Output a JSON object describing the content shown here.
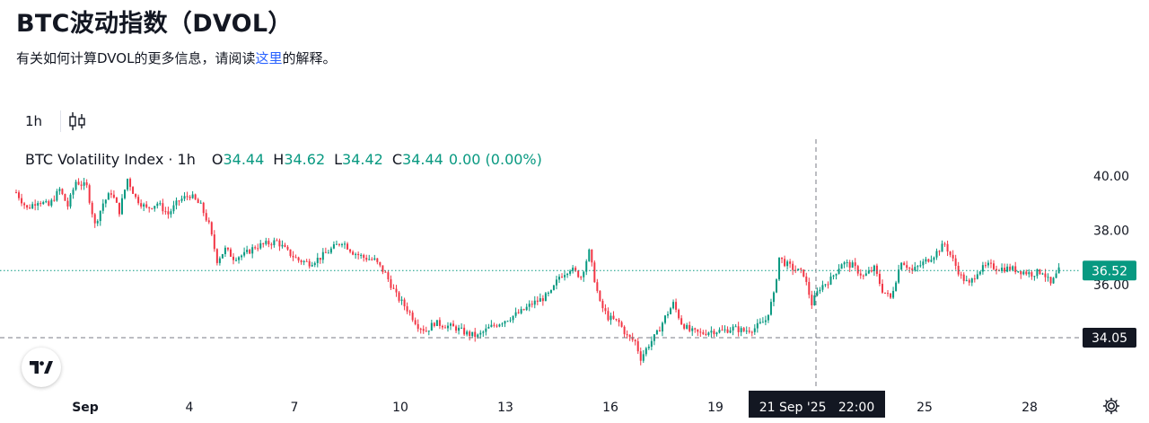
{
  "page": {
    "title": "BTC波动指数（DVOL）",
    "subtitle_pre": "有关如何计算DVOL的更多信息，请阅读",
    "subtitle_link": "这里",
    "subtitle_post": "的解释。"
  },
  "toolbar": {
    "interval_label": "1h",
    "chart_type_icon": "candlestick-icon"
  },
  "legend": {
    "name": "BTC Volatility Index · 1h",
    "o_label": "O",
    "o_value": "34.44",
    "h_label": "H",
    "h_value": "34.62",
    "l_label": "L",
    "l_value": "34.42",
    "c_label": "C",
    "c_value": "34.44",
    "change": "0.00 (0.00%)"
  },
  "colors": {
    "up": "#089981",
    "down": "#f23645",
    "crosshair_label_bg": "#131722",
    "last_price_bg": "#089981"
  },
  "chart_data": {
    "type": "candlestick",
    "y_ticks": [
      "40.00",
      "38.00",
      "36.00"
    ],
    "x_ticks": [
      "Sep",
      "4",
      "7",
      "10",
      "13",
      "16",
      "19",
      "25",
      "28"
    ],
    "last_price_label": "36.52",
    "crosshair_price_label": "34.05",
    "crosshair_time_label": "21 Sep '25   22:00",
    "ylim": [
      32.8,
      40.7
    ],
    "last_price": 36.52,
    "crosshair_price": 34.05,
    "price_path": [
      [
        0,
        39.4
      ],
      [
        2,
        38.8
      ],
      [
        4,
        39.1
      ],
      [
        6,
        38.9
      ],
      [
        8,
        39.5
      ],
      [
        9.5,
        38.9
      ],
      [
        11,
        39.8
      ],
      [
        13,
        39.6
      ],
      [
        14.5,
        38.2
      ],
      [
        16,
        39.0
      ],
      [
        17.5,
        39.4
      ],
      [
        19,
        38.7
      ],
      [
        20.5,
        39.9
      ],
      [
        22,
        39.2
      ],
      [
        24,
        38.8
      ],
      [
        26,
        39.0
      ],
      [
        28,
        38.6
      ],
      [
        30,
        39.1
      ],
      [
        32,
        39.3
      ],
      [
        34,
        38.9
      ],
      [
        35.5,
        38.2
      ],
      [
        37,
        36.9
      ],
      [
        38.5,
        37.3
      ],
      [
        40,
        37.0
      ],
      [
        42,
        37.1
      ],
      [
        44,
        37.4
      ],
      [
        46,
        37.5
      ],
      [
        48,
        37.6
      ],
      [
        50,
        37.2
      ],
      [
        52,
        36.9
      ],
      [
        54,
        36.8
      ],
      [
        56,
        37.0
      ],
      [
        58,
        37.3
      ],
      [
        60,
        37.6
      ],
      [
        62,
        37.2
      ],
      [
        64,
        37.0
      ],
      [
        66,
        36.9
      ],
      [
        68,
        36.4
      ],
      [
        70,
        35.6
      ],
      [
        72,
        35.1
      ],
      [
        74,
        34.5
      ],
      [
        75.5,
        34.3
      ],
      [
        77,
        34.6
      ],
      [
        79,
        34.5
      ],
      [
        81,
        34.4
      ],
      [
        83,
        34.2
      ],
      [
        85,
        34.1
      ],
      [
        87,
        34.4
      ],
      [
        89,
        34.6
      ],
      [
        91,
        34.8
      ],
      [
        93,
        35.0
      ],
      [
        95,
        35.3
      ],
      [
        97,
        35.5
      ],
      [
        98.5,
        35.7
      ],
      [
        100,
        36.3
      ],
      [
        102,
        36.6
      ],
      [
        104,
        36.3
      ],
      [
        105.5,
        37.2
      ],
      [
        106.5,
        36.2
      ],
      [
        107.5,
        35.3
      ],
      [
        109,
        34.8
      ],
      [
        111,
        34.6
      ],
      [
        112.5,
        34.1
      ],
      [
        114,
        33.9
      ],
      [
        115,
        33.3
      ],
      [
        116.5,
        33.8
      ],
      [
        118,
        34.2
      ],
      [
        119.5,
        34.8
      ],
      [
        121,
        35.3
      ],
      [
        122.5,
        34.6
      ],
      [
        124,
        34.3
      ],
      [
        126,
        34.2
      ],
      [
        128,
        34.3
      ],
      [
        130,
        34.3
      ],
      [
        132,
        34.4
      ],
      [
        134,
        34.3
      ],
      [
        136,
        34.4
      ],
      [
        138,
        34.7
      ],
      [
        139.5,
        35.6
      ],
      [
        140.5,
        37.0
      ],
      [
        141.5,
        36.8
      ],
      [
        143,
        36.6
      ],
      [
        145,
        36.4
      ],
      [
        146.5,
        35.3
      ],
      [
        148,
        35.9
      ],
      [
        150,
        36.2
      ],
      [
        152,
        36.8
      ],
      [
        154,
        36.7
      ],
      [
        156,
        36.3
      ],
      [
        158,
        36.6
      ],
      [
        159.5,
        35.8
      ],
      [
        161,
        35.5
      ],
      [
        163,
        36.9
      ],
      [
        165,
        36.5
      ],
      [
        167,
        36.8
      ],
      [
        169,
        37.1
      ],
      [
        171,
        37.5
      ],
      [
        172.5,
        36.9
      ],
      [
        174,
        36.3
      ],
      [
        175.5,
        36.0
      ],
      [
        177,
        36.5
      ],
      [
        179,
        36.7
      ],
      [
        181,
        36.6
      ],
      [
        183,
        36.6
      ],
      [
        185,
        36.5
      ],
      [
        187,
        36.4
      ],
      [
        189,
        36.5
      ],
      [
        190.5,
        36.0
      ],
      [
        192,
        36.52
      ]
    ]
  }
}
